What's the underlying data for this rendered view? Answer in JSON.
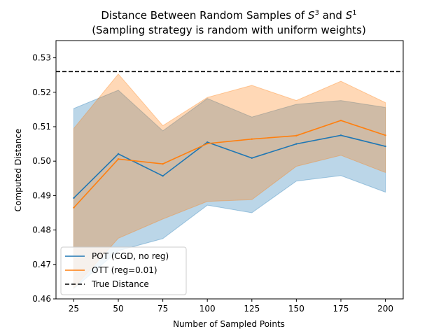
{
  "chart_data": {
    "type": "line",
    "title_line1_prefix": "Distance Between Random Samples of ",
    "title_S": "S",
    "title_exp1": "3",
    "title_and": " and ",
    "title_exp2": "1",
    "title_line2": "(Sampling strategy is random with uniform weights)",
    "xlabel": "Number of Sampled Points",
    "ylabel": "Computed Distance",
    "x": [
      25,
      50,
      75,
      100,
      125,
      150,
      175,
      200
    ],
    "xlim": [
      15,
      210
    ],
    "ylim": [
      0.46,
      0.535
    ],
    "xticks": [
      25,
      50,
      75,
      100,
      125,
      150,
      175,
      200
    ],
    "yticks": [
      0.46,
      0.47,
      0.48,
      0.49,
      0.5,
      0.51,
      0.52,
      0.53
    ],
    "true_distance": 0.526,
    "series": [
      {
        "name": "POT (CGD, no reg)",
        "color": "#1f77b4",
        "fill": "#a6c8e6",
        "values": [
          0.4893,
          0.5021,
          0.4957,
          0.5055,
          0.5009,
          0.505,
          0.5075,
          0.5043
        ],
        "upper": [
          0.5153,
          0.5206,
          0.5088,
          0.5182,
          0.5128,
          0.5165,
          0.5176,
          0.5156
        ],
        "lower": [
          0.463,
          0.474,
          0.4775,
          0.4872,
          0.485,
          0.4942,
          0.4958,
          0.491
        ]
      },
      {
        "name": "OTT (reg=0.01)",
        "color": "#ff7f0e",
        "fill": "#ffcc99",
        "values": [
          0.4865,
          0.5006,
          0.4992,
          0.5051,
          0.5064,
          0.5074,
          0.5118,
          0.5075
        ],
        "upper": [
          0.5095,
          0.5253,
          0.5103,
          0.5185,
          0.522,
          0.5176,
          0.5232,
          0.517
        ],
        "lower": [
          0.4632,
          0.4776,
          0.4832,
          0.4883,
          0.4888,
          0.4985,
          0.5017,
          0.4967
        ]
      }
    ],
    "legend": {
      "placement": "lower-left",
      "entries": [
        "POT (CGD, no reg)",
        "OTT (reg=0.01)",
        "True Distance"
      ]
    }
  }
}
